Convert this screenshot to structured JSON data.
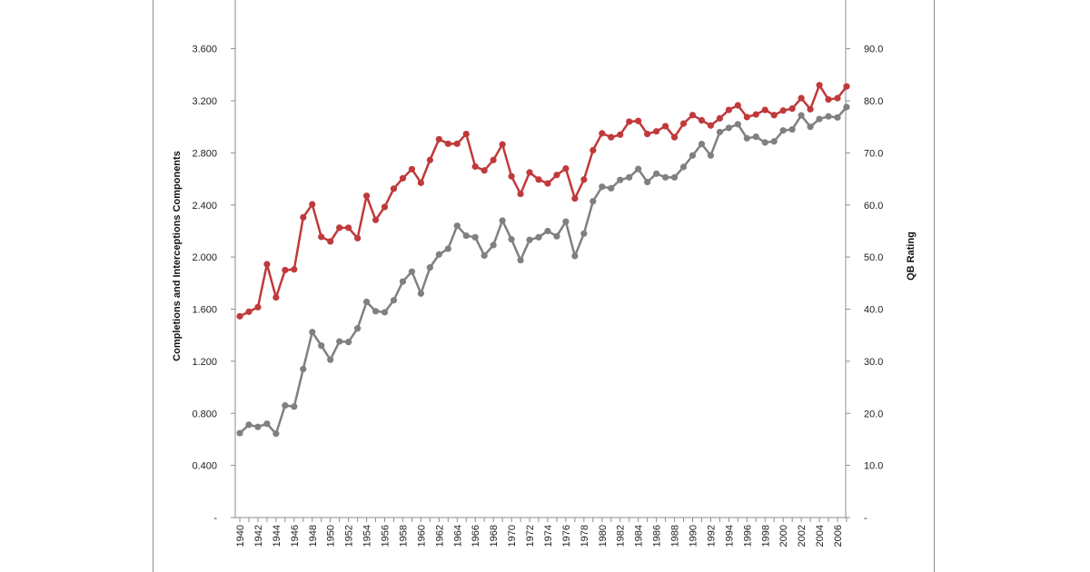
{
  "chart_data": {
    "type": "line",
    "title": "",
    "xlabel": "",
    "ylabel": "Completions and Interceptions Components",
    "y2label": "QB Rating",
    "ylim": [
      0,
      4.0
    ],
    "y2lim": [
      0,
      100
    ],
    "xlim": [
      1940,
      2007
    ],
    "yticks": [
      "-",
      "0.400",
      "0.800",
      "1.200",
      "1.600",
      "2.000",
      "2.400",
      "2.800",
      "3.200",
      "3.600"
    ],
    "y2ticks": [
      "-",
      "10.0",
      "20.0",
      "30.0",
      "40.0",
      "50.0",
      "60.0",
      "70.0",
      "80.0",
      "90.0"
    ],
    "xticks": [
      "1940",
      "1942",
      "1944",
      "1946",
      "1948",
      "1950",
      "1952",
      "1954",
      "1956",
      "1958",
      "1960",
      "1962",
      "1964",
      "1966",
      "1968",
      "1970",
      "1972",
      "1974",
      "1976",
      "1978",
      "1980",
      "1982",
      "1984",
      "1986",
      "1988",
      "1990",
      "1992",
      "1994",
      "1996",
      "1998",
      "2000",
      "2002",
      "2004",
      "2006"
    ],
    "legend": "none",
    "grid": false,
    "x": [
      1940,
      1941,
      1942,
      1943,
      1944,
      1945,
      1946,
      1947,
      1948,
      1949,
      1950,
      1951,
      1952,
      1953,
      1954,
      1955,
      1956,
      1957,
      1958,
      1959,
      1960,
      1961,
      1962,
      1963,
      1964,
      1965,
      1966,
      1967,
      1968,
      1969,
      1970,
      1971,
      1972,
      1973,
      1974,
      1975,
      1976,
      1977,
      1978,
      1979,
      1980,
      1981,
      1982,
      1983,
      1984,
      1985,
      1986,
      1987,
      1988,
      1989,
      1990,
      1991,
      1992,
      1993,
      1994,
      1995,
      1996,
      1997,
      1998,
      1999,
      2000,
      2001,
      2002,
      2003,
      2004,
      2005,
      2006,
      2007
    ],
    "series": [
      {
        "color": "#c0393b",
        "axis": "left",
        "values": [
          1.545,
          1.58,
          1.615,
          1.945,
          1.69,
          1.9,
          1.905,
          2.305,
          2.405,
          2.155,
          2.12,
          2.225,
          2.225,
          2.145,
          2.47,
          2.285,
          2.385,
          2.525,
          2.605,
          2.675,
          2.57,
          2.745,
          2.905,
          2.87,
          2.87,
          2.945,
          2.695,
          2.665,
          2.745,
          2.865,
          2.62,
          2.485,
          2.65,
          2.595,
          2.565,
          2.63,
          2.68,
          2.45,
          2.595,
          2.82,
          2.95,
          2.92,
          2.94,
          3.04,
          3.045,
          2.945,
          2.965,
          3.005,
          2.92,
          3.025,
          3.09,
          3.05,
          3.01,
          3.065,
          3.13,
          3.165,
          3.075,
          3.095,
          3.13,
          3.09,
          3.125,
          3.14,
          3.22,
          3.135,
          3.32,
          3.21,
          3.22,
          3.31
        ]
      },
      {
        "color": "#808080",
        "axis": "right",
        "values": [
          16.2,
          17.8,
          17.4,
          18.0,
          16.1,
          21.5,
          21.3,
          28.5,
          35.6,
          33.0,
          30.3,
          33.8,
          33.7,
          36.3,
          41.4,
          39.6,
          39.4,
          41.7,
          45.3,
          47.2,
          43.0,
          48.0,
          50.5,
          51.6,
          56.0,
          54.1,
          53.8,
          50.3,
          52.3,
          57.0,
          53.4,
          49.4,
          53.3,
          53.8,
          55.0,
          54.0,
          56.8,
          50.2,
          54.5,
          60.7,
          63.5,
          63.2,
          64.8,
          65.3,
          66.9,
          64.4,
          66.0,
          65.3,
          65.3,
          67.3,
          69.5,
          71.7,
          69.5,
          74.0,
          74.8,
          75.5,
          72.8,
          73.1,
          72.0,
          72.2,
          74.3,
          74.5,
          77.2,
          75.0,
          76.5,
          77.0,
          76.8,
          78.8
        ]
      }
    ]
  }
}
